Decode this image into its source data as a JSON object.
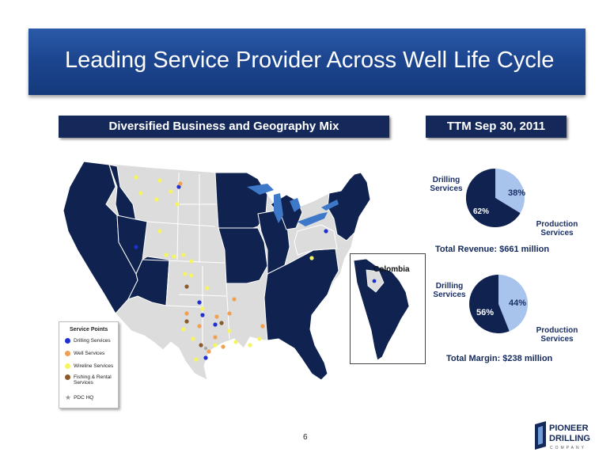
{
  "title": "Leading Service Provider Across Well Life Cycle",
  "left_banner": "Diversified Business and Geography Mix",
  "right_banner": "TTM Sep 30, 2011",
  "map": {
    "inset_label": "Colombia",
    "legend": {
      "title": "Service Points",
      "items": [
        {
          "label": "Drilling Services",
          "color": "#1f2fd0"
        },
        {
          "label": "Well Services",
          "color": "#f0a050"
        },
        {
          "label": "Wireline Services",
          "color": "#f5f560"
        },
        {
          "label": "Fishing & Rental Services",
          "color": "#8a5a2a"
        },
        {
          "label": "PDC HQ",
          "color": "#999999"
        }
      ]
    }
  },
  "revenue_pie": {
    "slices": [
      {
        "label": "Drilling Services",
        "value": 62,
        "display": "62%",
        "color": "#0f2250"
      },
      {
        "label": "Production Services",
        "value": 38,
        "display": "38%",
        "color": "#a9c4ec"
      }
    ],
    "total": "Total Revenue:  $661 million"
  },
  "margin_pie": {
    "slices": [
      {
        "label": "Drilling Services",
        "value": 56,
        "display": "56%",
        "color": "#0f2250"
      },
      {
        "label": "Production Services",
        "value": 44,
        "display": "44%",
        "color": "#a9c4ec"
      }
    ],
    "total": "Total Margin: $238 million"
  },
  "page_number": "6",
  "logo": {
    "line1": "PIONEER",
    "line2": "DRILLING",
    "line3": "COMPANY"
  }
}
